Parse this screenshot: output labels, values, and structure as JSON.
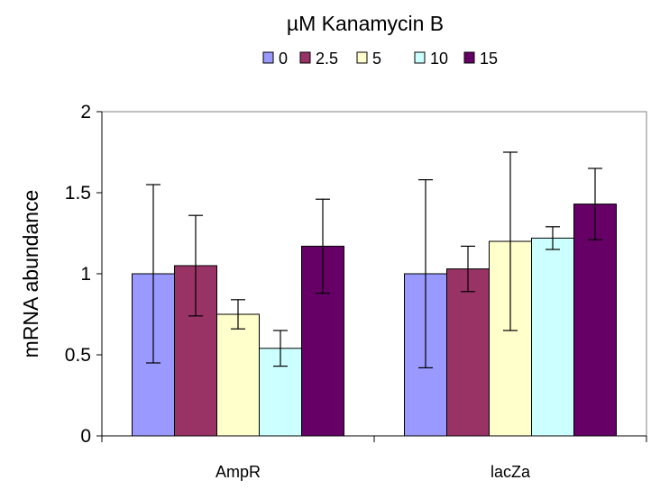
{
  "chart_data": {
    "type": "bar",
    "title": "",
    "legend": {
      "title": "µM Kanamycin B",
      "position": "top"
    },
    "xlabel": "",
    "ylabel": "mRNA abundance",
    "categories": [
      "AmpR",
      "lacZa"
    ],
    "ylim": [
      0,
      2
    ],
    "yticks": [
      0,
      0.5,
      1,
      1.5,
      2
    ],
    "ytick_labels": [
      "0",
      "0.5",
      "1",
      "1.5",
      "2"
    ],
    "grid": false,
    "error_bars": true,
    "series": [
      {
        "name": "0",
        "color": "#9999ff",
        "values": [
          1.0,
          1.0
        ],
        "errors": [
          0.55,
          0.58
        ]
      },
      {
        "name": "2.5",
        "color": "#993366",
        "values": [
          1.05,
          1.03
        ],
        "errors": [
          0.31,
          0.14
        ]
      },
      {
        "name": "5",
        "color": "#ffffcc",
        "values": [
          0.75,
          1.2
        ],
        "errors": [
          0.09,
          0.55
        ]
      },
      {
        "name": "10",
        "color": "#ccffff",
        "values": [
          0.54,
          1.22
        ],
        "errors": [
          0.11,
          0.07
        ]
      },
      {
        "name": "15",
        "color": "#660066",
        "values": [
          1.17,
          1.43
        ],
        "errors": [
          0.29,
          0.22
        ]
      }
    ]
  }
}
